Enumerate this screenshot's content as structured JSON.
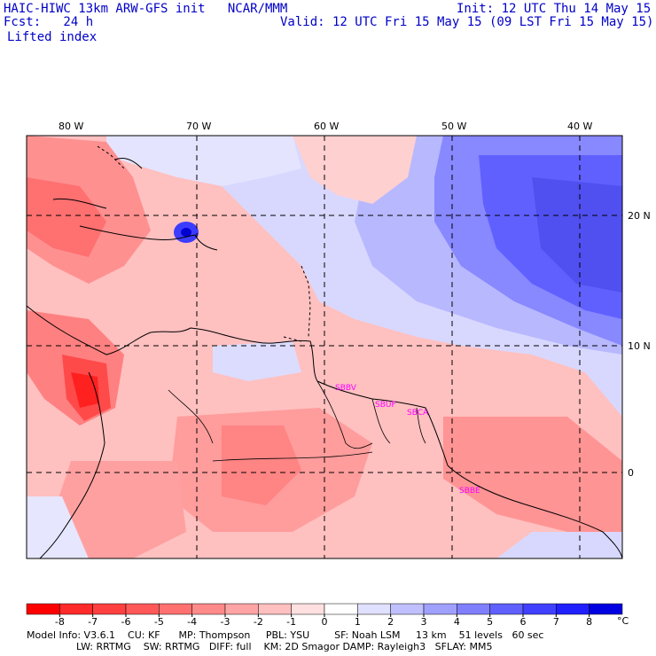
{
  "header": {
    "title": "HAIC-HIWC 13km ARW-GFS init   NCAR/MMM",
    "init": "Init: 12 UTC Thu 14 May 15",
    "fcst": "Fcst:   24 h",
    "valid": "Valid: 12 UTC Fri 15 May 15 (09 LST Fri 15 May 15)",
    "field": "Lifted index"
  },
  "map": {
    "lon_labels": [
      "80 W",
      "70 W",
      "60 W",
      "50 W",
      "40 W"
    ],
    "lat_labels": [
      "20 N",
      "10 N",
      "0"
    ],
    "stations": [
      "SBBV",
      "SBUF",
      "SBCA",
      "SBBE"
    ]
  },
  "colorbar": {
    "ticks": [
      "-8",
      "-7",
      "-6",
      "-5",
      "-4",
      "-3",
      "-2",
      "-1",
      "0",
      "1",
      "2",
      "3",
      "4",
      "5",
      "6",
      "7",
      "8"
    ],
    "unit": "°C",
    "colors": [
      "#ff0000",
      "#ff2a2a",
      "#ff4040",
      "#ff5858",
      "#ff7070",
      "#ff8a8a",
      "#ffa4a4",
      "#ffc0c0",
      "#ffe0e0",
      "#ffffff",
      "#e0e0ff",
      "#c0c0ff",
      "#a0a0ff",
      "#8080ff",
      "#6060ff",
      "#4040ff",
      "#2020ff",
      "#0000e0"
    ]
  },
  "footer": {
    "line1": "Model Info: V3.6.1    CU: KF      MP: Thompson     PBL: YSU        SF: Noah LSM     13 km    51 levels   60 sec",
    "line2": "                LW: RRTMG    SW: RRTMG   DIFF: full    KM: 2D Smagor DAMP: Rayleigh3   SFLAY: MM5"
  }
}
